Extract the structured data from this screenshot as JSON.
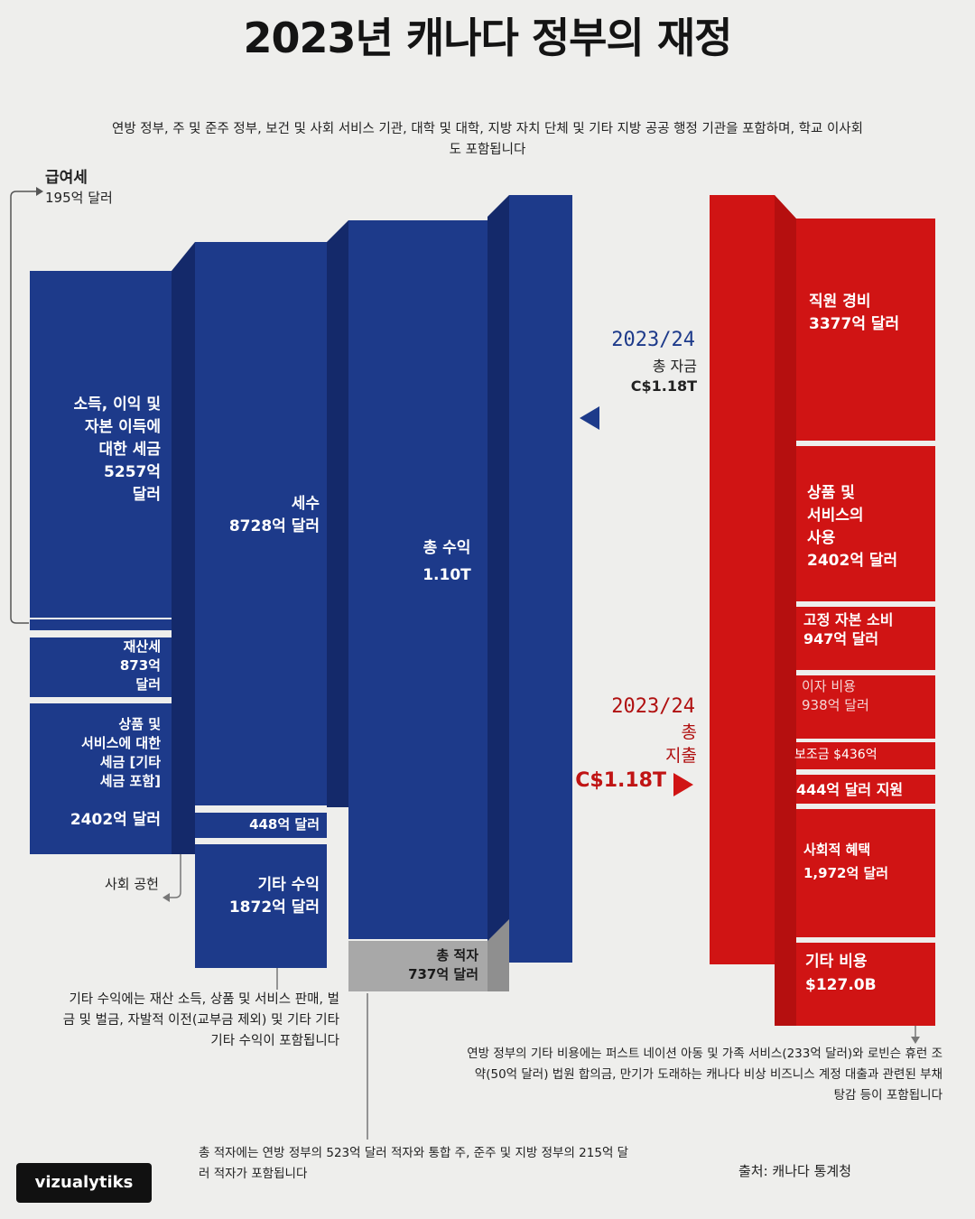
{
  "title": "2023년 캐나다 정부의 재정",
  "subtitle": "연방 정부, 주 및 준주 정부, 보건 및 사회 서비스 기관, 대학 및 대학, 지방 자치 단체 및 기타 지방 공공 행정 기관을 포함하며, 학교 이사회도 포함됩니다",
  "revenue": {
    "payroll_tax": {
      "name": "급여세",
      "value": "195억 달러"
    },
    "income_tax": {
      "line1": "소득, 이익 및",
      "line2": "자본 이득에",
      "line3": "대한 세금",
      "line4": "5257억",
      "line5": "달러"
    },
    "property_tax": {
      "line1": "재산세",
      "line2": "873억",
      "line3": "달러"
    },
    "goods_tax": {
      "line1": "상품 및",
      "line2": "서비스에 대한",
      "line3": "세금 [기타",
      "line4": "세금 포함]",
      "value": "2402억 달러"
    },
    "tax_total": {
      "name": "세수",
      "value": "8728억 달러"
    },
    "social_contrib": {
      "value": "448억 달러",
      "name": "사회 공헌"
    },
    "other_income": {
      "name": "기타 수익",
      "value": "1872억 달러"
    },
    "total_revenue": {
      "name": "총 수익",
      "value": "1.10T"
    },
    "deficit": {
      "name": "총 적자",
      "value": "737억 달러"
    }
  },
  "totals": {
    "funding_year": "2023/24",
    "funding_label": "총 자금",
    "funding_value": "C$1.18T",
    "spending_year": "2023/24",
    "spending_label1": "총",
    "spending_label2": "지출",
    "spending_value": "C$1.18T"
  },
  "expenses": {
    "staff": {
      "line1": "직원 경비",
      "line2": "3377억 달러"
    },
    "goods_services": {
      "line1": "상품 및",
      "line2": "서비스의",
      "line3": "사용",
      "line4": "2402억 달러"
    },
    "capital": {
      "line1": "고정 자본 소비",
      "line2": "947억 달러"
    },
    "interest": {
      "line1": "이자 비용",
      "line2": "938억 달러"
    },
    "subsidy": {
      "line1": "보조금 $436억"
    },
    "grants": {
      "line1": "444억 달러 지원"
    },
    "social_benefits": {
      "line1": "사회적 혜택",
      "line2": "1,972억 달러"
    },
    "other": {
      "line1": "기타 비용",
      "line2": "$127.0B"
    }
  },
  "notes": {
    "other_income": "기타 수익에는 재산 소득, 상품 및 서비스 판매, 벌금 및 벌금, 자발적 이전(교부금 제외) 및 기타 기타 기타 수익이 포함됩니다",
    "other_expenses": "연방 정부의 기타 비용에는 퍼스트 네이션 아동 및 가족 서비스(233억 달러)와 로빈슨 휴런 조약(50억 달러) 법원 합의금, 만기가 도래하는 캐나다 비상 비즈니스 계정 대출과 관련된 부채 탕감 등이 포함됩니다",
    "deficit": "총 적자에는 연방 정부의 523억 달러 적자와 통합 주, 준주 및 지방 정부의 215억 달러 적자가 포함됩니다"
  },
  "source": "출처: 캐나다 통계청",
  "brand": "vizualytiks",
  "colors": {
    "revenue": "#1d3a8a",
    "expenses": "#d01414",
    "deficit": "#a8a8a8"
  }
}
